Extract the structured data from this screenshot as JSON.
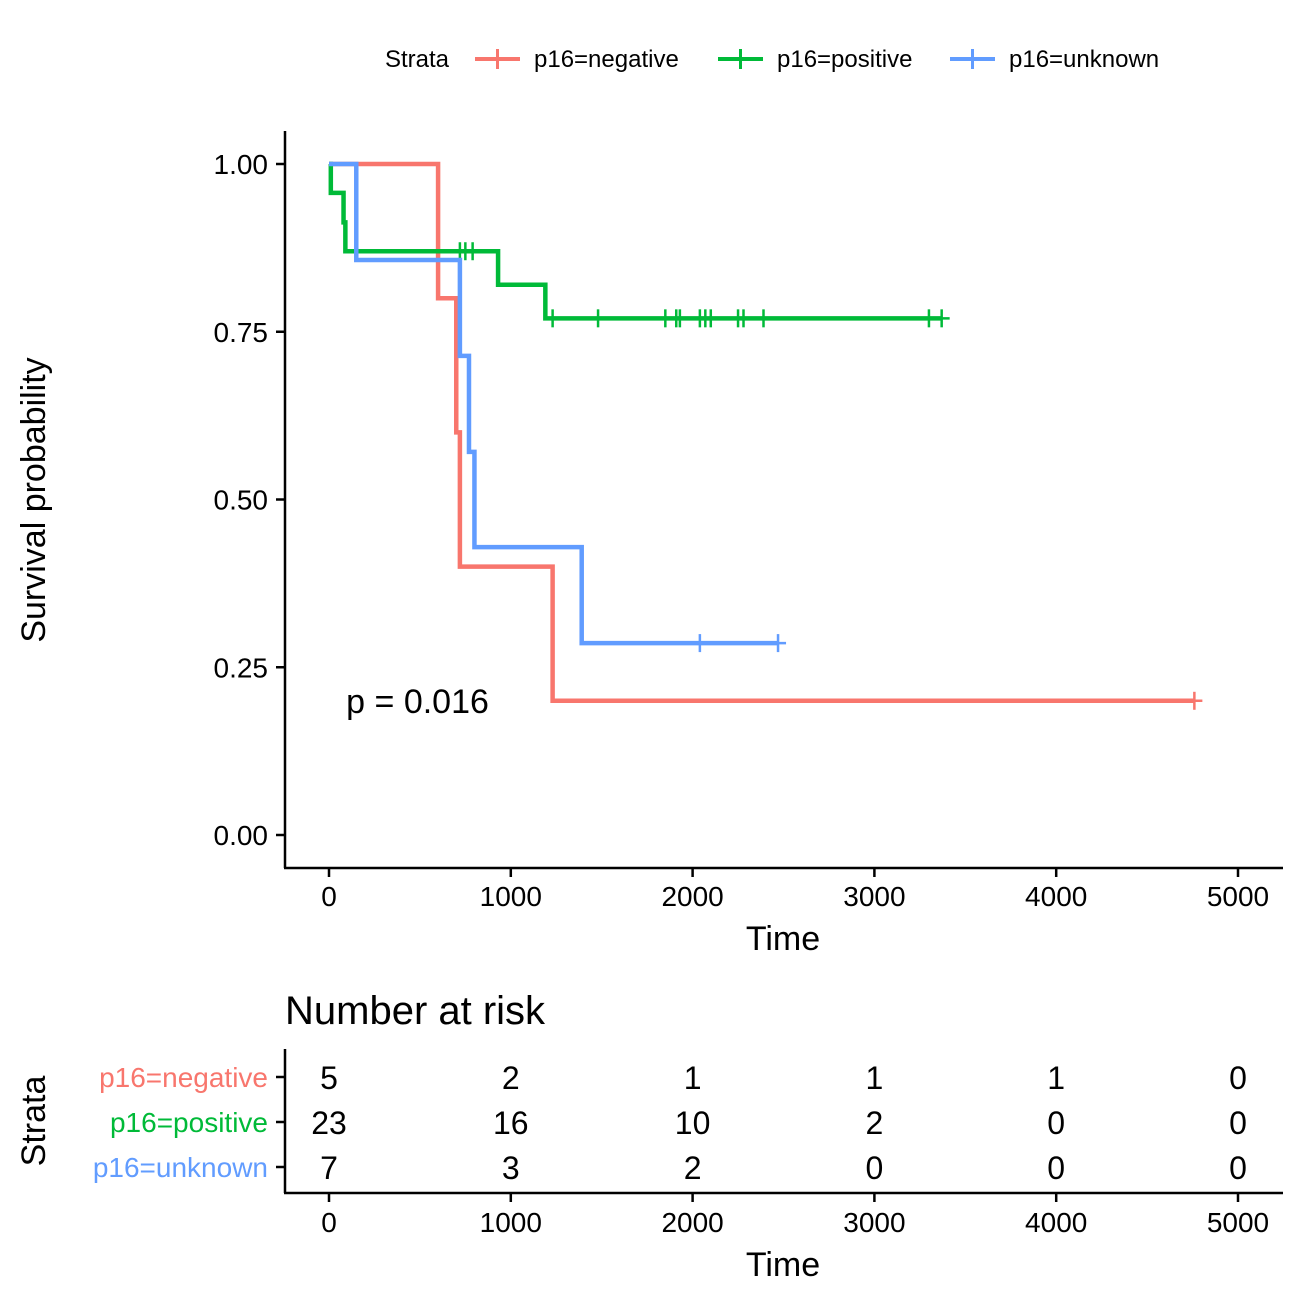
{
  "chart_data": [
    {
      "type": "line",
      "subtype": "kaplan-meier",
      "title": "",
      "xlabel": "Time",
      "ylabel": "Survival probability",
      "xlim": [
        -250,
        5250
      ],
      "ylim": [
        -0.05,
        1.05
      ],
      "xticks": [
        0,
        1000,
        2000,
        3000,
        4000,
        5000
      ],
      "yticks": [
        0.0,
        0.25,
        0.5,
        0.75,
        1.0
      ],
      "ytick_labels": [
        "0.00",
        "0.25",
        "0.50",
        "0.75",
        "1.00"
      ],
      "grid": false,
      "legend": {
        "title": "Strata",
        "position": "top",
        "entries": [
          "p16=negative",
          "p16=positive",
          "p16=unknown"
        ]
      },
      "annotation": "p = 0.016",
      "annotation_position": {
        "x": 100,
        "y": 0.2
      },
      "series": [
        {
          "name": "p16=negative",
          "color": "#F8766D",
          "steps": [
            [
              0,
              1.0
            ],
            [
              600,
              0.8
            ],
            [
              700,
              0.6
            ],
            [
              720,
              0.4
            ],
            [
              1230,
              0.2
            ],
            [
              4760,
              0.2
            ]
          ],
          "censored": [
            [
              4760,
              0.2
            ]
          ]
        },
        {
          "name": "p16=positive",
          "color": "#00BA38",
          "steps": [
            [
              0,
              1.0
            ],
            [
              10,
              0.957
            ],
            [
              80,
              0.913
            ],
            [
              90,
              0.87
            ],
            [
              930,
              0.82
            ],
            [
              1190,
              0.77
            ],
            [
              3370,
              0.77
            ]
          ],
          "censored": [
            [
              720,
              0.87
            ],
            [
              750,
              0.87
            ],
            [
              790,
              0.87
            ],
            [
              1230,
              0.77
            ],
            [
              1480,
              0.77
            ],
            [
              1850,
              0.77
            ],
            [
              1910,
              0.77
            ],
            [
              1930,
              0.77
            ],
            [
              2040,
              0.77
            ],
            [
              2070,
              0.77
            ],
            [
              2100,
              0.77
            ],
            [
              2250,
              0.77
            ],
            [
              2280,
              0.77
            ],
            [
              2390,
              0.77
            ],
            [
              3300,
              0.77
            ],
            [
              3370,
              0.77
            ]
          ]
        },
        {
          "name": "p16=unknown",
          "color": "#619CFF",
          "steps": [
            [
              0,
              1.0
            ],
            [
              150,
              0.857
            ],
            [
              720,
              0.714
            ],
            [
              770,
              0.571
            ],
            [
              800,
              0.429
            ],
            [
              1390,
              0.286
            ],
            [
              2470,
              0.286
            ]
          ],
          "censored": [
            [
              2040,
              0.286
            ],
            [
              2470,
              0.286
            ]
          ]
        }
      ]
    },
    {
      "type": "table",
      "title": "Number at risk",
      "xlabel": "Time",
      "ylabel": "Strata",
      "xlim": [
        -250,
        5250
      ],
      "xticks": [
        0,
        1000,
        2000,
        3000,
        4000,
        5000
      ],
      "times": [
        0,
        1000,
        2000,
        3000,
        4000,
        5000
      ],
      "rows": [
        {
          "name": "p16=negative",
          "color": "#F8766D",
          "values": [
            5,
            2,
            1,
            1,
            1,
            0
          ]
        },
        {
          "name": "p16=positive",
          "color": "#00BA38",
          "values": [
            23,
            16,
            10,
            2,
            0,
            0
          ]
        },
        {
          "name": "p16=unknown",
          "color": "#619CFF",
          "values": [
            7,
            3,
            2,
            0,
            0,
            0
          ]
        }
      ]
    }
  ]
}
